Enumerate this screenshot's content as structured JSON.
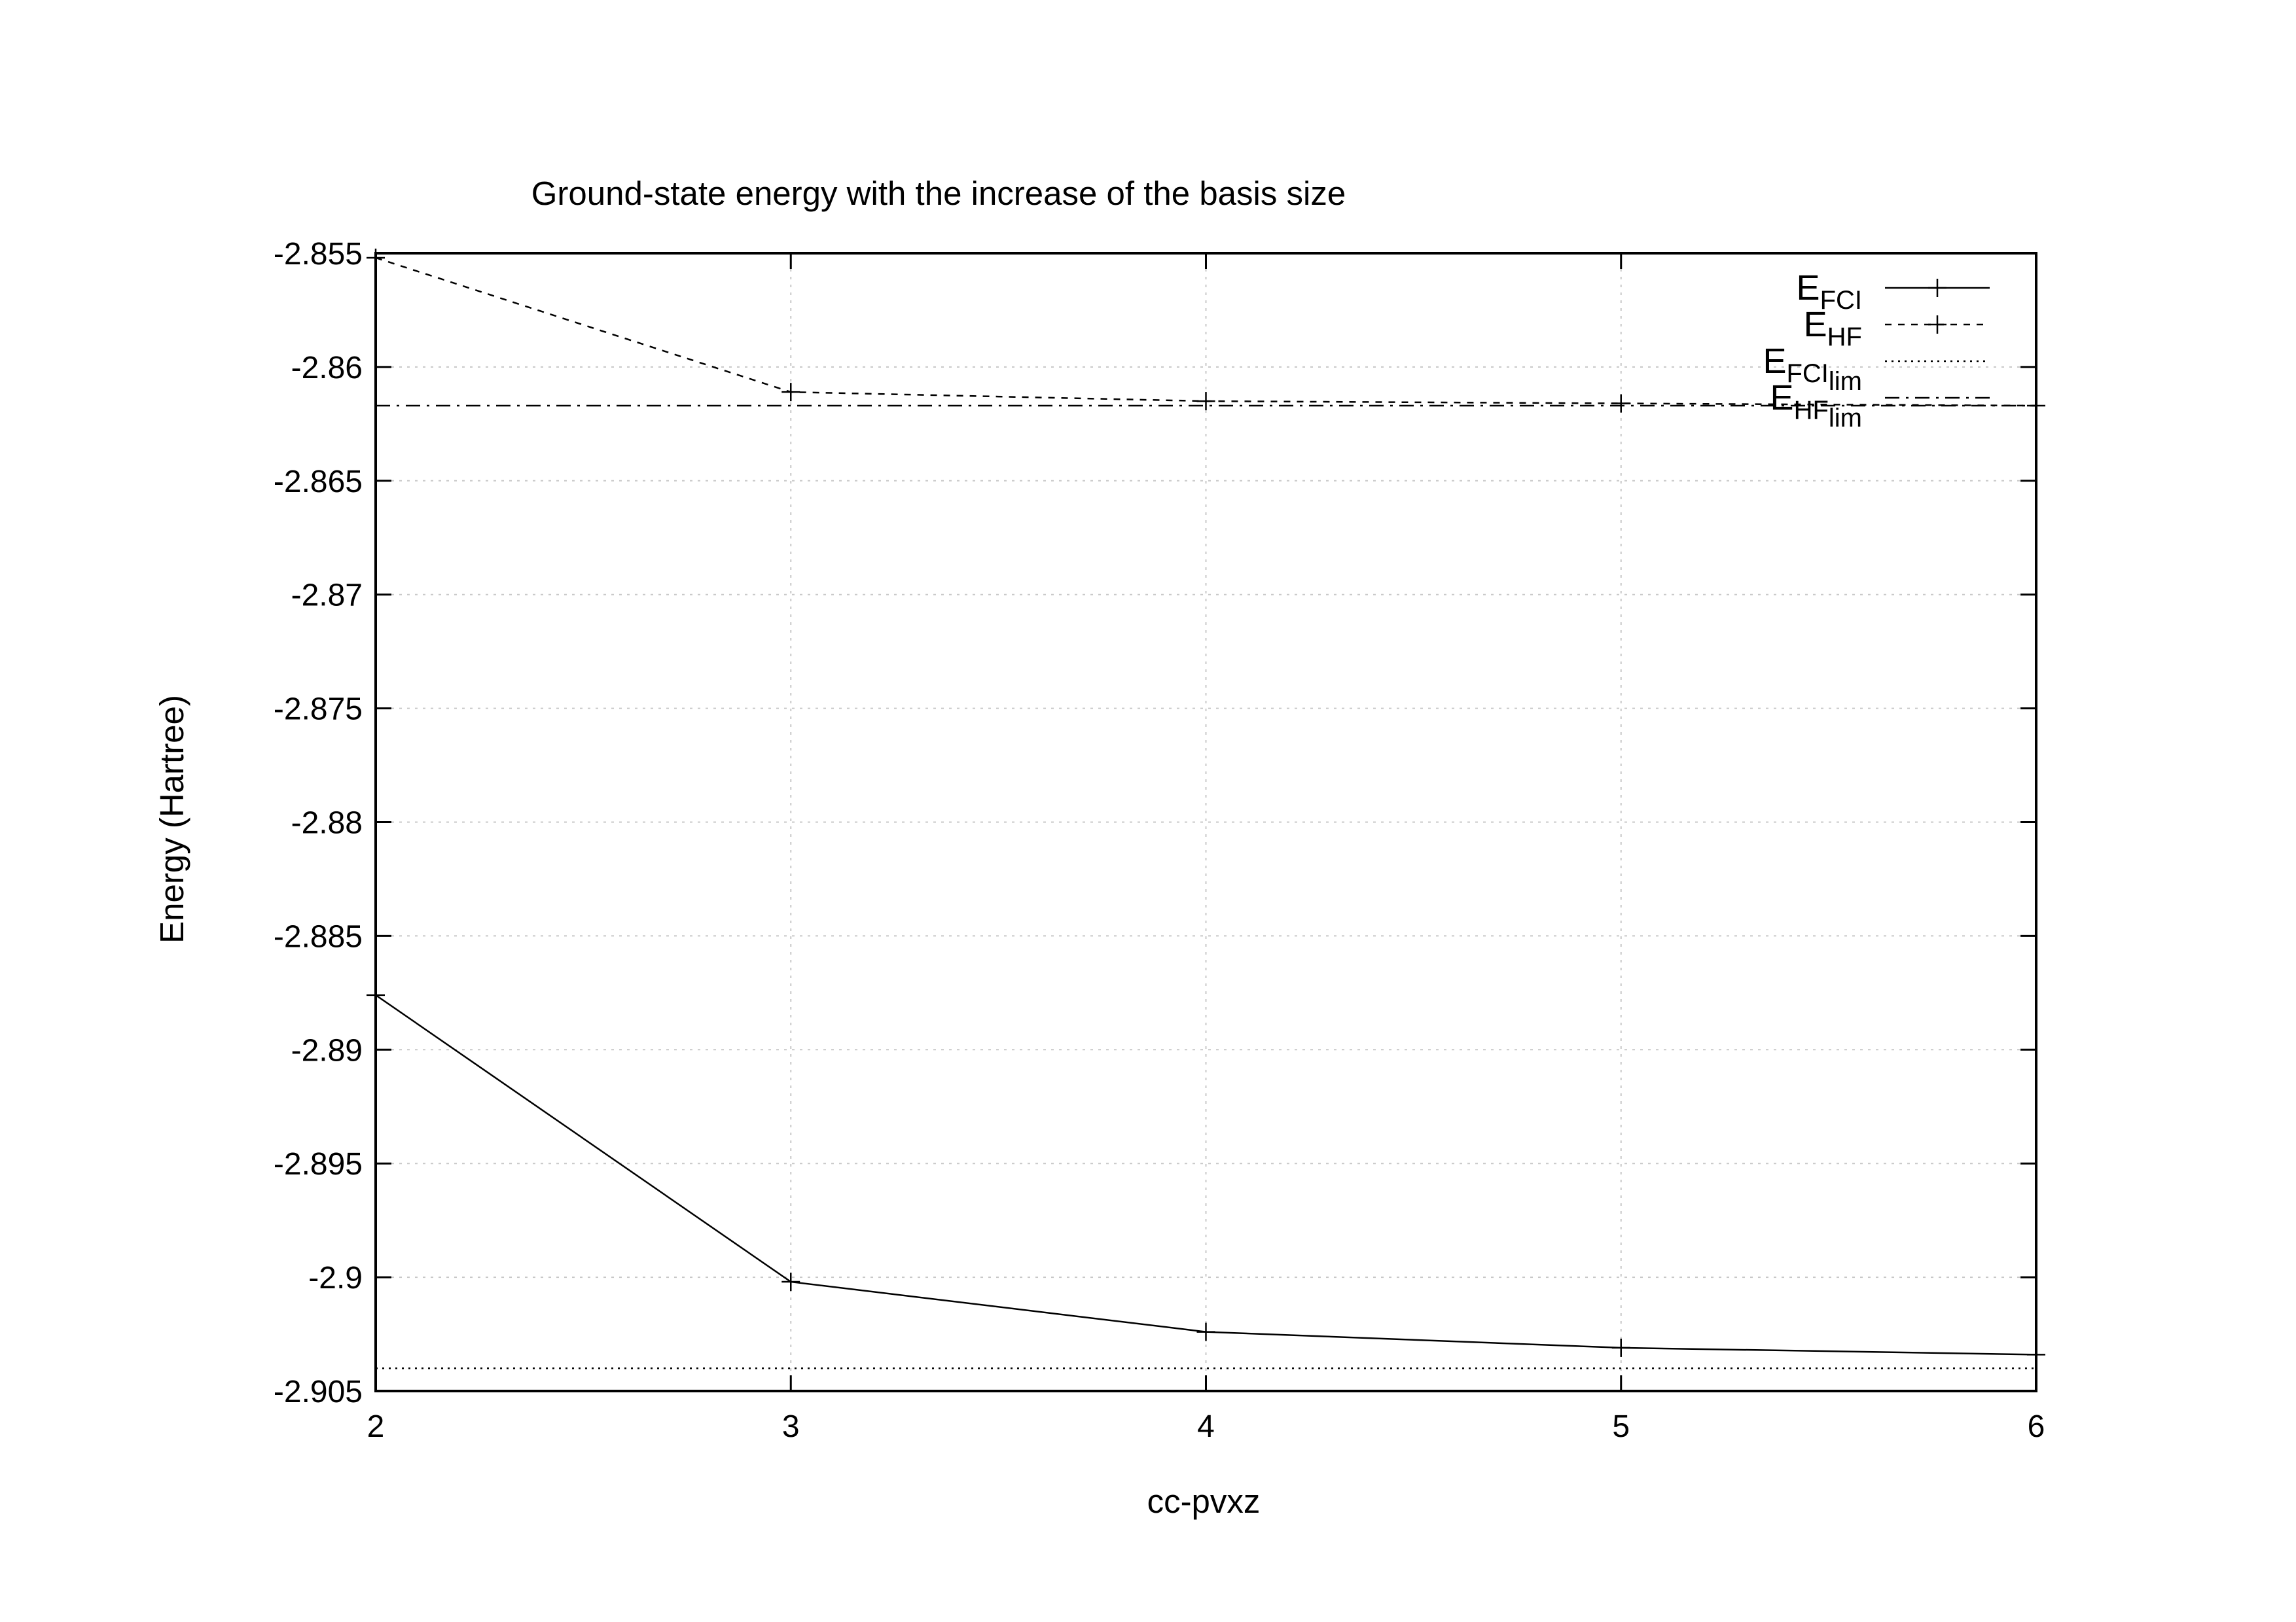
{
  "chart_data": {
    "type": "line",
    "title": "Ground-state energy with the increase of the basis size",
    "xlabel": "cc-pvxz",
    "ylabel": "Energy (Hartree)",
    "xlim": [
      2,
      6
    ],
    "ylim": [
      -2.905,
      -2.855
    ],
    "x_ticks": [
      "2",
      "3",
      "4",
      "5",
      "6"
    ],
    "y_ticks": [
      "-2.855",
      "-2.86",
      "-2.865",
      "-2.87",
      "-2.875",
      "-2.88",
      "-2.885",
      "-2.89",
      "-2.895",
      "-2.9",
      "-2.905"
    ],
    "grid": true,
    "legend_position": "top-right",
    "series": [
      {
        "name": "E_FCI",
        "legend_main": "E",
        "legend_sub": "FCI",
        "style": "solid-with-points",
        "color": "#000000",
        "x": [
          2,
          3,
          4,
          5,
          6
        ],
        "y": [
          -2.8876,
          -2.9002,
          -2.9024,
          -2.9031,
          -2.9034
        ]
      },
      {
        "name": "E_HF",
        "legend_main": "E",
        "legend_sub": "HF",
        "style": "dashed-with-points",
        "color": "#000000",
        "x": [
          2,
          3,
          4,
          5,
          6
        ],
        "y": [
          -2.8552,
          -2.8611,
          -2.8615,
          -2.8616,
          -2.8617
        ]
      },
      {
        "name": "E_FCI_lim",
        "legend_main": "E",
        "legend_sub": "FCI",
        "legend_sub2": "lim",
        "style": "dotted",
        "color": "#000000",
        "x": [
          2,
          6
        ],
        "y": [
          -2.904,
          -2.904
        ]
      },
      {
        "name": "E_HF_lim",
        "legend_main": "E",
        "legend_sub": "HF",
        "legend_sub2": "lim",
        "style": "dashdot",
        "color": "#000000",
        "x": [
          2,
          6
        ],
        "y": [
          -2.8617,
          -2.8617
        ]
      }
    ]
  }
}
